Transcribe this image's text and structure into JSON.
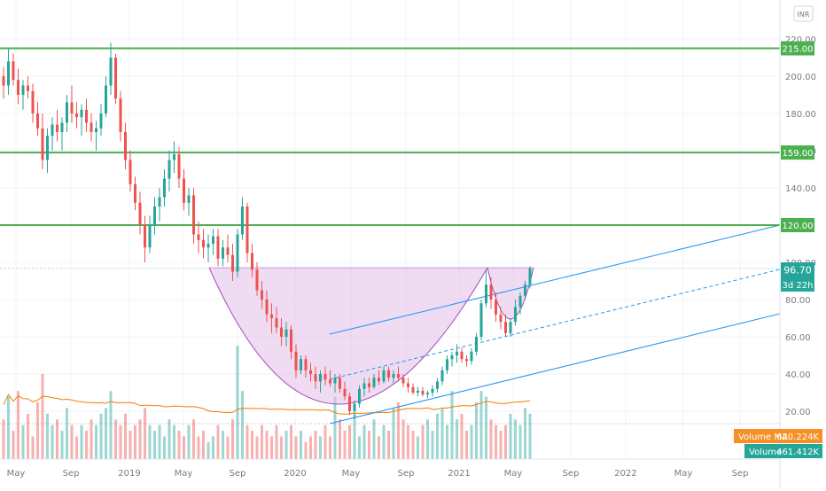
{
  "currency_badge": "INR",
  "colors": {
    "up": "#26a69a",
    "down": "#ef5350",
    "resistance": "#4caf50",
    "channel": "#2196f3",
    "cup_fill": "#e1bee7",
    "cup_stroke": "#ab47bc",
    "volume_ma": "#f57c00",
    "axis_text": "#787b86",
    "grid": "#f0f3fa"
  },
  "chart_data": {
    "type": "candlestick",
    "price_axis": {
      "range": [
        12,
        225
      ],
      "ticks": [
        "220.00",
        "200.00",
        "180.00",
        "160.00",
        "140.00",
        "100.00",
        "80.00",
        "60.00",
        "40.00",
        "20.00"
      ]
    },
    "time_axis": {
      "ticks": [
        "May",
        "Sep",
        "2019",
        "May",
        "Sep",
        "2020",
        "May",
        "Sep",
        "2021",
        "May",
        "Sep",
        "2022",
        "May",
        "Sep"
      ]
    },
    "horizontal_levels": [
      "215.00",
      "159.00",
      "120.00"
    ],
    "last_price": "96.70",
    "countdown": "3d 22h",
    "volume_ma_label": "Volume MA",
    "volume_ma_value": "620.224K",
    "volume_label": "Volume",
    "volume_value": "461.412K",
    "ohlc_weekly": [
      [
        200,
        205,
        188,
        195
      ],
      [
        195,
        215,
        190,
        208
      ],
      [
        208,
        212,
        195,
        198
      ],
      [
        198,
        204,
        185,
        190
      ],
      [
        190,
        198,
        182,
        195
      ],
      [
        195,
        200,
        188,
        192
      ],
      [
        192,
        196,
        175,
        180
      ],
      [
        180,
        186,
        168,
        172
      ],
      [
        172,
        180,
        150,
        155
      ],
      [
        155,
        172,
        148,
        168
      ],
      [
        168,
        178,
        160,
        174
      ],
      [
        174,
        182,
        165,
        170
      ],
      [
        170,
        178,
        160,
        175
      ],
      [
        175,
        190,
        170,
        186
      ],
      [
        186,
        195,
        175,
        180
      ],
      [
        180,
        186,
        172,
        178
      ],
      [
        178,
        185,
        168,
        182
      ],
      [
        182,
        188,
        170,
        175
      ],
      [
        175,
        180,
        165,
        170
      ],
      [
        170,
        176,
        160,
        172
      ],
      [
        172,
        185,
        168,
        180
      ],
      [
        180,
        200,
        178,
        195
      ],
      [
        195,
        218,
        190,
        210
      ],
      [
        210,
        212,
        185,
        188
      ],
      [
        188,
        192,
        165,
        170
      ],
      [
        170,
        175,
        150,
        155
      ],
      [
        155,
        160,
        138,
        142
      ],
      [
        142,
        146,
        128,
        132
      ],
      [
        132,
        138,
        115,
        120
      ],
      [
        120,
        125,
        100,
        108
      ],
      [
        108,
        125,
        105,
        120
      ],
      [
        120,
        135,
        115,
        130
      ],
      [
        130,
        140,
        122,
        135
      ],
      [
        135,
        150,
        130,
        145
      ],
      [
        145,
        160,
        138,
        155
      ],
      [
        155,
        165,
        148,
        158
      ],
      [
        158,
        162,
        140,
        145
      ],
      [
        145,
        150,
        128,
        132
      ],
      [
        132,
        140,
        125,
        136
      ],
      [
        136,
        140,
        110,
        115
      ],
      [
        115,
        122,
        105,
        112
      ],
      [
        112,
        118,
        102,
        108
      ],
      [
        108,
        115,
        100,
        110
      ],
      [
        110,
        118,
        104,
        114
      ],
      [
        114,
        118,
        98,
        102
      ],
      [
        102,
        112,
        98,
        108
      ],
      [
        108,
        115,
        100,
        104
      ],
      [
        104,
        110,
        90,
        95
      ],
      [
        95,
        118,
        92,
        115
      ],
      [
        115,
        135,
        112,
        130
      ],
      [
        130,
        132,
        100,
        105
      ],
      [
        105,
        110,
        92,
        96
      ],
      [
        96,
        100,
        82,
        85
      ],
      [
        85,
        90,
        75,
        80
      ],
      [
        80,
        85,
        68,
        72
      ],
      [
        72,
        78,
        62,
        70
      ],
      [
        70,
        76,
        62,
        65
      ],
      [
        65,
        70,
        55,
        60
      ],
      [
        60,
        68,
        55,
        64
      ],
      [
        64,
        66,
        48,
        52
      ],
      [
        52,
        56,
        38,
        42
      ],
      [
        42,
        50,
        40,
        48
      ],
      [
        48,
        50,
        38,
        42
      ],
      [
        42,
        46,
        36,
        40
      ],
      [
        40,
        44,
        32,
        36
      ],
      [
        36,
        42,
        30,
        40
      ],
      [
        40,
        44,
        34,
        37
      ],
      [
        37,
        42,
        33,
        35
      ],
      [
        35,
        40,
        30,
        38
      ],
      [
        38,
        40,
        30,
        32
      ],
      [
        32,
        36,
        26,
        28
      ],
      [
        28,
        30,
        18,
        20
      ],
      [
        20,
        26,
        16,
        24
      ],
      [
        24,
        34,
        22,
        32
      ],
      [
        32,
        38,
        28,
        35
      ],
      [
        35,
        38,
        30,
        33
      ],
      [
        33,
        40,
        32,
        38
      ],
      [
        38,
        42,
        34,
        36
      ],
      [
        36,
        44,
        35,
        42
      ],
      [
        42,
        44,
        36,
        38
      ],
      [
        38,
        42,
        35,
        40
      ],
      [
        40,
        44,
        36,
        38
      ],
      [
        38,
        40,
        33,
        35
      ],
      [
        35,
        38,
        30,
        33
      ],
      [
        33,
        35,
        29,
        30
      ],
      [
        30,
        33,
        28,
        31
      ],
      [
        31,
        33,
        28,
        29
      ],
      [
        29,
        31,
        27,
        30
      ],
      [
        30,
        34,
        28,
        32
      ],
      [
        32,
        38,
        30,
        36
      ],
      [
        36,
        44,
        34,
        42
      ],
      [
        42,
        50,
        40,
        48
      ],
      [
        48,
        52,
        44,
        50
      ],
      [
        50,
        56,
        46,
        52
      ],
      [
        52,
        54,
        46,
        48
      ],
      [
        48,
        50,
        44,
        47
      ],
      [
        47,
        54,
        45,
        52
      ],
      [
        52,
        62,
        50,
        60
      ],
      [
        60,
        80,
        58,
        78
      ],
      [
        78,
        96,
        76,
        88
      ],
      [
        88,
        92,
        75,
        80
      ],
      [
        80,
        84,
        68,
        72
      ],
      [
        72,
        76,
        64,
        68
      ],
      [
        68,
        72,
        60,
        62
      ],
      [
        62,
        70,
        60,
        68
      ],
      [
        68,
        80,
        66,
        76
      ],
      [
        76,
        84,
        72,
        82
      ],
      [
        82,
        90,
        80,
        88
      ],
      [
        88,
        98,
        86,
        96.7
      ]
    ],
    "volume_relative": [
      0.35,
      0.55,
      0.25,
      0.6,
      0.3,
      0.4,
      0.2,
      0.5,
      0.75,
      0.4,
      0.3,
      0.35,
      0.25,
      0.45,
      0.3,
      0.2,
      0.3,
      0.25,
      0.35,
      0.3,
      0.4,
      0.45,
      0.6,
      0.35,
      0.3,
      0.4,
      0.25,
      0.3,
      0.35,
      0.45,
      0.3,
      0.25,
      0.3,
      0.2,
      0.35,
      0.3,
      0.25,
      0.2,
      0.3,
      0.35,
      0.2,
      0.25,
      0.15,
      0.2,
      0.3,
      0.25,
      0.2,
      0.35,
      1.0,
      0.6,
      0.3,
      0.25,
      0.2,
      0.3,
      0.25,
      0.2,
      0.3,
      0.2,
      0.25,
      0.3,
      0.2,
      0.25,
      0.15,
      0.2,
      0.25,
      0.2,
      0.3,
      0.2,
      0.55,
      0.35,
      0.25,
      0.3,
      0.4,
      0.2,
      0.3,
      0.25,
      0.35,
      0.2,
      0.3,
      0.25,
      0.45,
      0.5,
      0.35,
      0.3,
      0.25,
      0.2,
      0.3,
      0.35,
      0.25,
      0.4,
      0.45,
      0.3,
      0.6,
      0.35,
      0.4,
      0.25,
      0.3,
      0.5,
      0.6,
      0.55,
      0.35,
      0.3,
      0.25,
      0.3,
      0.4,
      0.35,
      0.3,
      0.45,
      0.4
    ]
  }
}
